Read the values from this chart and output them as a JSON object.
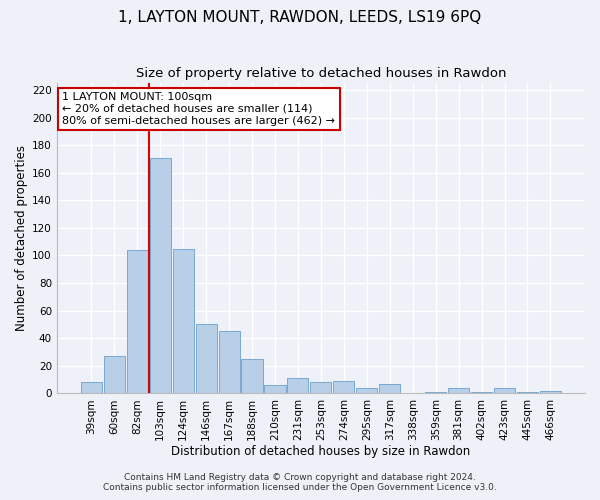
{
  "title": "1, LAYTON MOUNT, RAWDON, LEEDS, LS19 6PQ",
  "subtitle": "Size of property relative to detached houses in Rawdon",
  "xlabel": "Distribution of detached houses by size in Rawdon",
  "ylabel": "Number of detached properties",
  "categories": [
    "39sqm",
    "60sqm",
    "82sqm",
    "103sqm",
    "124sqm",
    "146sqm",
    "167sqm",
    "188sqm",
    "210sqm",
    "231sqm",
    "253sqm",
    "274sqm",
    "295sqm",
    "317sqm",
    "338sqm",
    "359sqm",
    "381sqm",
    "402sqm",
    "423sqm",
    "445sqm",
    "466sqm"
  ],
  "values": [
    8,
    27,
    104,
    171,
    105,
    50,
    45,
    25,
    6,
    11,
    8,
    9,
    4,
    7,
    0,
    1,
    4,
    1,
    4,
    1,
    2
  ],
  "bar_color": "#b8cfe8",
  "bar_edge_color": "#6aa0cc",
  "redline_x": 2.5,
  "redline_color": "#dd0000",
  "annotation_line1": "1 LAYTON MOUNT: 100sqm",
  "annotation_line2": "← 20% of detached houses are smaller (114)",
  "annotation_line3": "80% of semi-detached houses are larger (462) →",
  "annotation_box_color": "#ffffff",
  "annotation_box_edge": "#cc0000",
  "ylim": [
    0,
    225
  ],
  "yticks": [
    0,
    20,
    40,
    60,
    80,
    100,
    120,
    140,
    160,
    180,
    200,
    220
  ],
  "footer1": "Contains HM Land Registry data © Crown copyright and database right 2024.",
  "footer2": "Contains public sector information licensed under the Open Government Licence v3.0.",
  "background_color": "#eef2f8",
  "title_fontsize": 11,
  "subtitle_fontsize": 9.5,
  "xlabel_fontsize": 8.5,
  "ylabel_fontsize": 8.5,
  "tick_fontsize": 7.5,
  "annotation_fontsize": 8,
  "footer_fontsize": 6.5
}
